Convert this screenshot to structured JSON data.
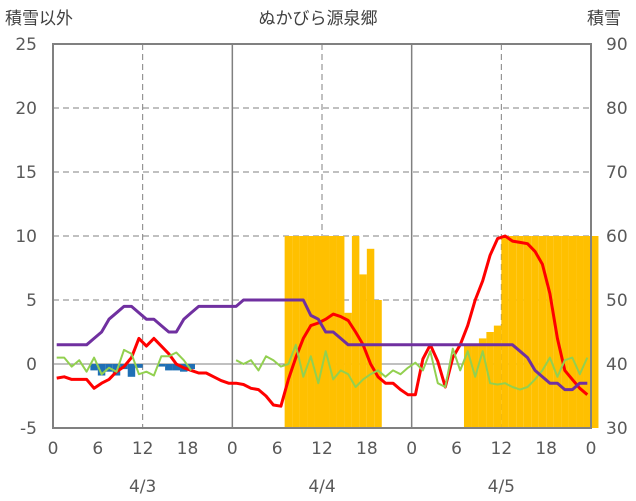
{
  "chart_data": {
    "type": "bar+line",
    "title": "ぬかびら源泉郷",
    "left_axis_label": "積雪以外",
    "right_axis_label": "積雪",
    "left_axis": {
      "min": -5,
      "max": 25,
      "ticks": [
        -5,
        0,
        5,
        10,
        15,
        20,
        25
      ]
    },
    "right_axis": {
      "min": 30,
      "max": 90,
      "ticks": [
        30,
        40,
        50,
        60,
        70,
        80,
        90
      ]
    },
    "x_hour_ticks": [
      "0",
      "6",
      "12",
      "18",
      "0",
      "6",
      "12",
      "18",
      "0",
      "6",
      "12",
      "18",
      "0"
    ],
    "day_labels": [
      "4/3",
      "4/4",
      "4/5"
    ],
    "grid": true,
    "series": [
      {
        "axis": "right",
        "kind": "bar",
        "color": "#FFC000",
        "values": [
          null,
          null,
          null,
          null,
          null,
          null,
          null,
          null,
          null,
          null,
          null,
          null,
          null,
          null,
          null,
          null,
          null,
          null,
          null,
          null,
          null,
          null,
          null,
          null,
          null,
          null,
          null,
          null,
          null,
          null,
          null,
          60,
          60,
          60,
          60,
          60,
          60,
          60,
          60,
          48,
          60,
          54,
          58,
          50,
          null,
          null,
          null,
          null,
          null,
          null,
          null,
          null,
          null,
          null,
          null,
          null,
          null,
          null,
          null,
          null,
          null,
          null,
          null,
          null,
          null,
          null,
          null,
          null,
          null,
          null,
          null,
          null,
          null,
          null,
          null,
          null,
          null,
          null,
          null,
          null,
          null,
          null,
          null,
          null,
          null,
          null,
          null,
          null,
          null,
          null,
          null,
          null,
          null,
          null,
          null,
          null,
          null,
          null,
          null,
          null,
          null,
          null,
          null,
          null,
          null,
          null,
          null,
          null,
          null,
          null,
          null,
          null,
          null,
          null,
          null,
          null,
          null,
          null,
          null,
          null,
          null,
          null,
          null,
          null,
          null,
          null,
          null,
          null,
          null,
          null,
          null,
          null,
          null,
          null,
          null,
          null,
          null,
          null,
          null,
          null,
          null,
          null,
          null,
          null,
          null,
          null,
          null,
          null,
          null,
          null,
          null,
          null,
          null,
          null,
          null,
          null,
          null,
          null,
          null,
          null,
          null,
          null,
          null,
          null,
          null,
          null,
          null,
          null,
          null,
          null,
          null,
          null,
          null,
          null,
          null,
          null,
          null,
          null,
          null,
          null,
          null,
          null,
          null,
          null,
          null,
          null,
          null,
          null,
          null,
          null,
          null,
          null,
          null,
          null,
          null,
          null,
          null,
          null,
          null,
          null,
          null,
          null,
          null,
          null,
          null,
          null,
          null,
          null,
          null,
          null,
          null,
          null,
          null,
          null,
          null,
          null,
          null,
          null,
          null,
          null,
          null,
          null,
          null,
          null,
          null,
          null,
          null,
          null,
          null,
          null,
          null,
          null,
          null,
          null,
          null,
          null,
          null,
          null,
          null,
          null,
          null,
          null,
          null,
          null,
          null,
          null,
          null,
          null,
          null,
          null,
          null,
          null,
          null,
          null,
          null,
          null,
          null,
          null,
          null,
          null,
          null,
          null,
          null,
          null,
          null,
          null,
          null,
          null,
          null,
          null,
          null,
          null,
          null,
          null,
          null,
          null,
          null,
          null,
          null,
          null,
          null,
          null,
          null,
          null,
          null,
          null,
          null,
          null
        ]
      }
    ],
    "snow_depth_bars": {
      "axis": "right",
      "color": "#FFC000",
      "hours": [
        31,
        32,
        33,
        34,
        35,
        36,
        37,
        38,
        39,
        40,
        41,
        42,
        43,
        44,
        45,
        55,
        56,
        57,
        58,
        59,
        60,
        61,
        62,
        63,
        64,
        65,
        66,
        67,
        68,
        69,
        70,
        71,
        72
      ],
      "values": [
        60,
        60,
        60,
        60,
        60,
        60,
        60,
        60,
        48,
        60,
        54,
        58,
        50,
        null,
        null,
        43,
        43,
        44,
        45,
        46,
        60,
        60,
        60,
        60,
        60,
        60,
        60,
        60,
        60,
        60,
        60,
        60,
        60
      ]
    },
    "precip_bars": {
      "axis": "left",
      "color": "#1F6FB5",
      "hours": [
        5,
        6,
        7,
        8,
        9,
        10,
        11,
        12,
        13,
        14,
        15,
        16,
        17,
        18,
        19
      ],
      "values": [
        -0.5,
        -0.9,
        -0.6,
        -0.9,
        -0.4,
        -1.0,
        -0.3,
        0,
        0,
        -0.2,
        -0.5,
        -0.5,
        -0.6,
        -0.4,
        0
      ]
    },
    "lines": [
      {
        "axis": "left",
        "color": "#FF0000",
        "values": [
          -1.1,
          -1.0,
          -1.2,
          -1.2,
          -1.2,
          -1.9,
          -1.5,
          -1.2,
          -0.6,
          -0.2,
          0.5,
          2.0,
          1.4,
          2.0,
          1.4,
          0.8,
          0.0,
          -0.3,
          -0.5,
          -0.7,
          -0.7,
          -1.0,
          -1.3,
          -1.5,
          -1.5,
          -1.6,
          -1.9,
          -2.0,
          -2.5,
          -3.2,
          -3.3,
          -1.2,
          0.5,
          2.0,
          3.0,
          3.2,
          3.5,
          3.9,
          3.7,
          3.4,
          2.5,
          1.5,
          0.0,
          -1.0,
          -1.5,
          -1.5,
          -2.0,
          -2.4,
          -2.4,
          0.4,
          1.5,
          0.2,
          -1.8,
          0.5,
          1.5,
          3.0,
          5.0,
          6.5,
          8.5,
          9.8,
          10.0,
          9.6,
          9.5,
          9.4,
          8.8,
          7.8,
          5.5,
          2.0,
          -0.5,
          -1.2,
          -1.9,
          -2.4
        ]
      },
      {
        "axis": "left",
        "color": "#92D050",
        "values": [
          0.5,
          0.5,
          -0.2,
          0.3,
          -0.6,
          0.5,
          -0.8,
          -0.3,
          -0.6,
          1.1,
          0.8,
          -0.8,
          -0.6,
          -0.9,
          0.6,
          0.6,
          0.9,
          0.3,
          -0.5,
          null,
          null,
          null,
          null,
          null,
          0.3,
          0.0,
          0.3,
          -0.5,
          0.6,
          0.3,
          -0.2,
          0.0,
          1.5,
          -1.0,
          0.6,
          -1.5,
          1.0,
          -1.2,
          -0.5,
          -0.8,
          -1.8,
          -1.2,
          -0.8,
          -0.5,
          -1.0,
          -0.5,
          -0.8,
          -0.3,
          0.1,
          -0.5,
          1.0,
          -1.5,
          -1.8,
          1.2,
          -0.5,
          1.0,
          -1.0,
          1.0,
          -1.5,
          -1.6,
          -1.5,
          -1.8,
          -2.0,
          -1.8,
          -1.2,
          -0.5,
          0.5,
          -1.0,
          0.3,
          0.5,
          -0.8,
          0.5
        ]
      },
      {
        "axis": "left",
        "color": "#7030A0",
        "values": [
          1.5,
          1.5,
          1.5,
          1.5,
          1.5,
          2.0,
          2.5,
          3.5,
          4.0,
          4.5,
          4.5,
          4.0,
          3.5,
          3.5,
          3.0,
          2.5,
          2.5,
          3.5,
          4.0,
          4.5,
          4.5,
          4.5,
          4.5,
          4.5,
          4.5,
          5.0,
          5.0,
          5.0,
          5.0,
          5.0,
          5.0,
          5.0,
          5.0,
          5.0,
          3.8,
          3.5,
          2.5,
          2.5,
          2.0,
          1.5,
          1.5,
          1.5,
          1.5,
          1.5,
          1.5,
          1.5,
          1.5,
          1.5,
          1.5,
          1.5,
          1.5,
          1.5,
          1.5,
          1.5,
          1.5,
          1.5,
          1.5,
          1.5,
          1.5,
          1.5,
          1.5,
          1.5,
          1.0,
          0.5,
          -0.5,
          -1.0,
          -1.5,
          -1.5,
          -2.0,
          -2.0,
          -1.5,
          -1.5
        ]
      }
    ],
    "colors": {
      "frame": "#808080",
      "grid": "#808080",
      "tick_text": "#595959"
    }
  }
}
